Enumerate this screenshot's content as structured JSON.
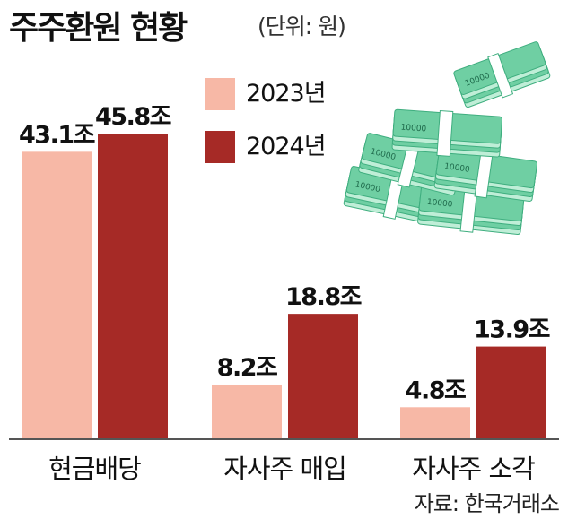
{
  "title": "주주환원 현황",
  "unit_note": "(단위: 원)",
  "source": "자료: 한국거래소",
  "colors": {
    "y2023": "#f7b8a6",
    "y2024": "#a62a26",
    "axis": "#555555",
    "money": "#6fcfa3"
  },
  "decor": {
    "money_icon": "banknote-stack-icon",
    "banknote_label": "10000"
  },
  "legend": [
    {
      "label": "2023년",
      "color": "#f7b8a6"
    },
    {
      "label": "2024년",
      "color": "#a62a26"
    }
  ],
  "chart_data": {
    "type": "bar",
    "title": "주주환원 현황",
    "unit": "조",
    "categories": [
      "현금배당",
      "자사주 매입",
      "자사주 소각"
    ],
    "series": [
      {
        "name": "2023년",
        "values": [
          43.1,
          8.2,
          4.8
        ],
        "labels": [
          "43.1조",
          "8.2조",
          "4.8조"
        ],
        "color": "#f7b8a6"
      },
      {
        "name": "2024년",
        "values": [
          45.8,
          18.8,
          13.9
        ],
        "labels": [
          "45.8조",
          "18.8조",
          "13.9조"
        ],
        "color": "#a62a26"
      }
    ],
    "ylim": [
      0,
      50
    ],
    "grid": false,
    "legend_position": "top-right"
  }
}
